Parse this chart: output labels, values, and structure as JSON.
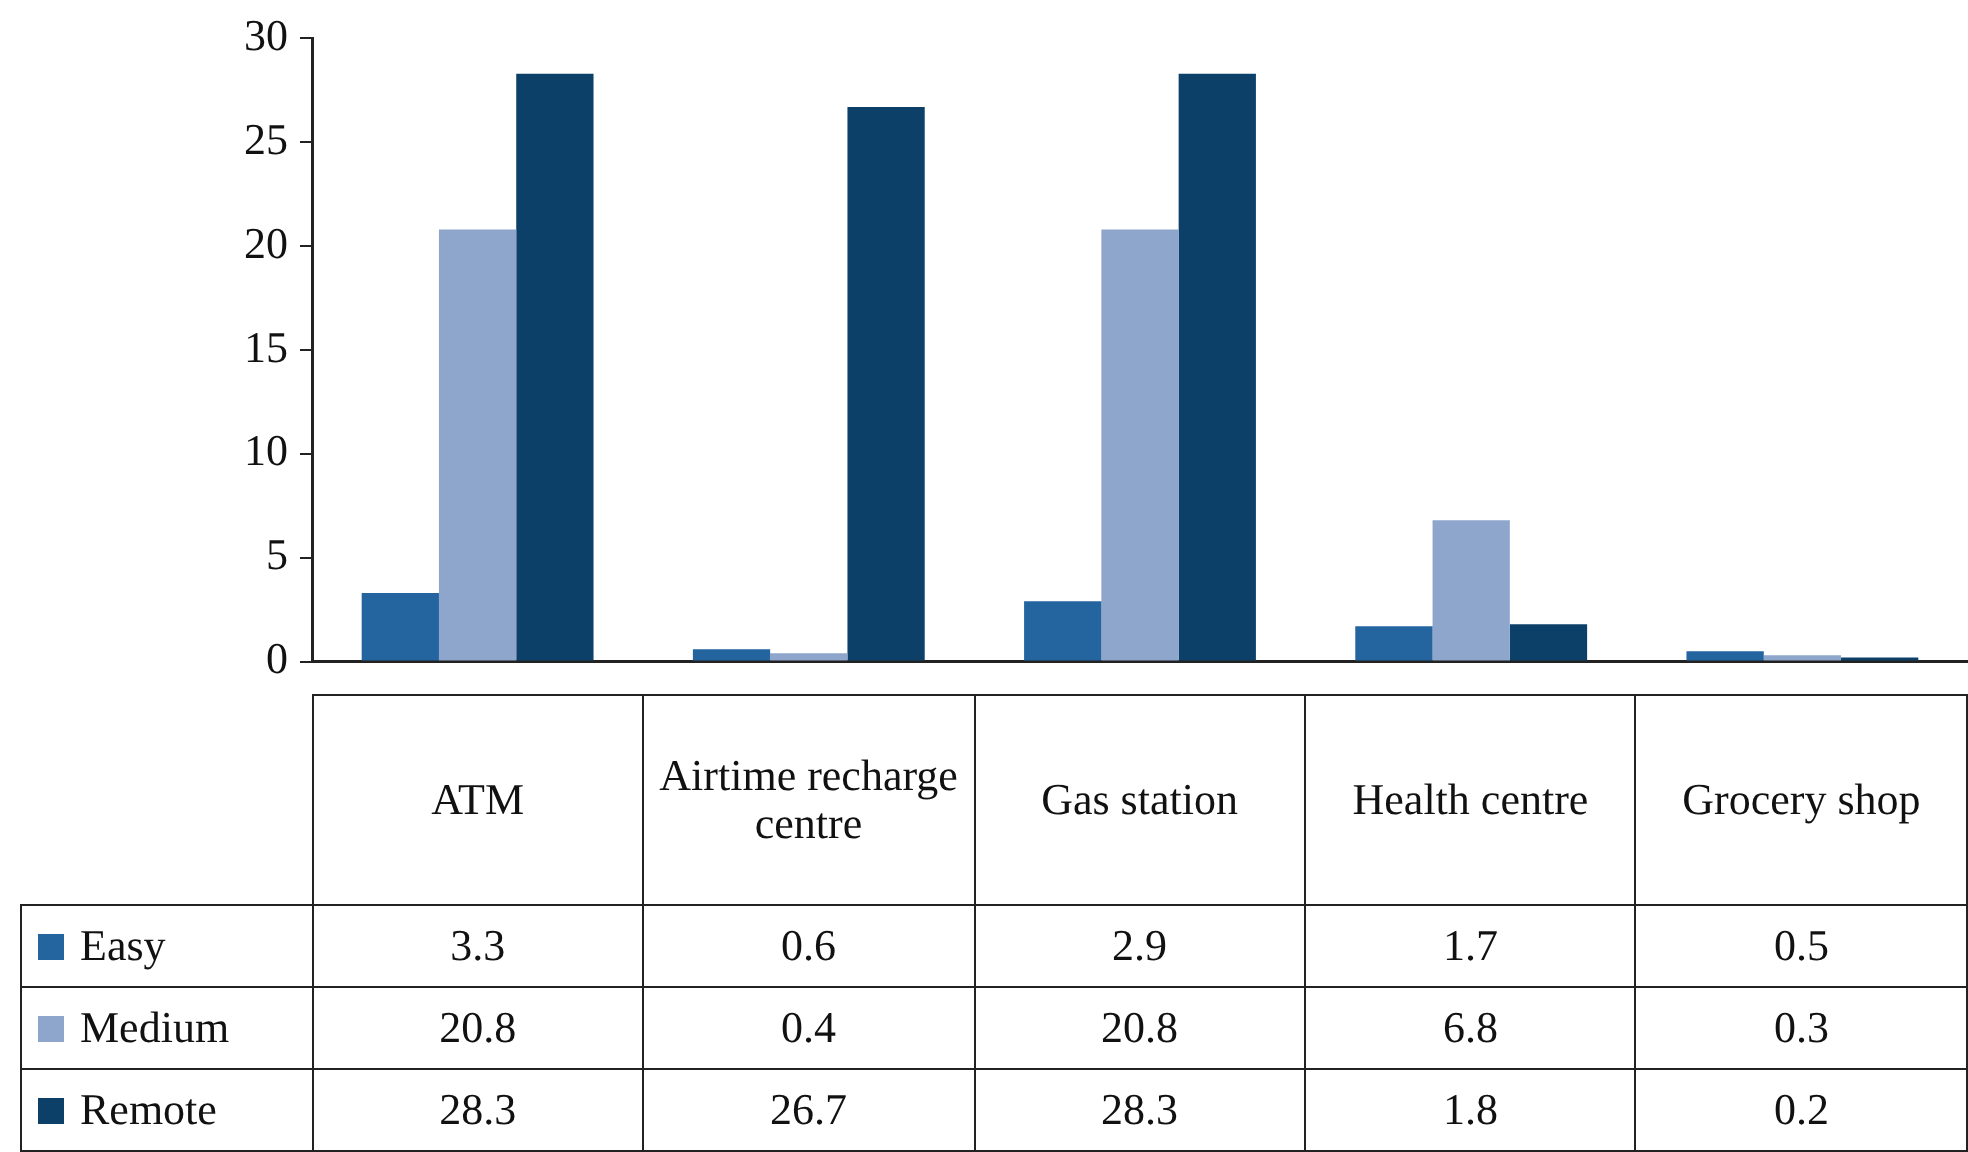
{
  "chart_data": {
    "type": "bar",
    "categories": [
      "ATM",
      "Airtime recharge centre",
      "Gas station",
      "Health centre",
      "Grocery shop"
    ],
    "series": [
      {
        "name": "Easy",
        "color": "#2465a0",
        "values": [
          3.3,
          0.6,
          2.9,
          1.7,
          0.5
        ]
      },
      {
        "name": "Medium",
        "color": "#8ea6cb",
        "values": [
          20.8,
          0.4,
          20.8,
          6.8,
          0.3
        ]
      },
      {
        "name": "Remote",
        "color": "#0c4068",
        "values": [
          28.3,
          26.7,
          28.3,
          1.8,
          0.2
        ]
      }
    ],
    "ylim": [
      0,
      30
    ],
    "yticks": [
      0,
      5,
      10,
      15,
      20,
      25,
      30
    ],
    "grid": false,
    "legend": "bottom",
    "data_labels": true
  }
}
